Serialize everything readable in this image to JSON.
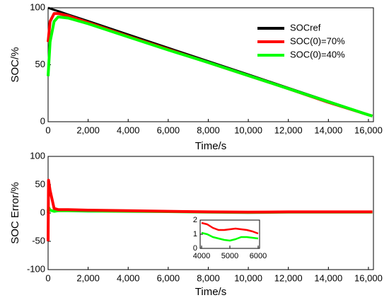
{
  "chart_data": [
    {
      "type": "line",
      "xlabel": "Time/s",
      "ylabel": "SOC/%",
      "x": [
        0,
        100,
        300,
        500,
        1000,
        2000,
        4000,
        6000,
        8000,
        10000,
        12000,
        14000,
        16000,
        16200
      ],
      "series": [
        {
          "name": "SOCref",
          "color": "#000000",
          "values": [
            100,
            99.4,
            98.2,
            97.1,
            94.1,
            88.3,
            76.5,
            64.8,
            53.1,
            41.4,
            29.6,
            17.9,
            6.2,
            5
          ]
        },
        {
          "name": "SOC(0)=70%",
          "color": "#ff0000",
          "values": [
            70,
            88,
            95,
            95,
            93,
            87,
            75,
            63.5,
            52,
            40.5,
            29,
            17,
            6,
            5
          ]
        },
        {
          "name": "SOC(0)=40%",
          "color": "#00ff00",
          "values": [
            40,
            70,
            88,
            92,
            91,
            86,
            74.5,
            63,
            52,
            40.5,
            29,
            17.5,
            6,
            5
          ]
        }
      ],
      "xlim": [
        0,
        16250
      ],
      "ylim": [
        0,
        100
      ],
      "xticks": [
        0,
        {
          "value": 2000,
          "label": "2,000"
        },
        {
          "value": 4000,
          "label": "4,000"
        },
        {
          "value": 6000,
          "label": "6,000"
        },
        {
          "value": 8000,
          "label": "8,000"
        },
        {
          "value": 10000,
          "label": "10,000"
        },
        {
          "value": 12000,
          "label": "12,000"
        },
        {
          "value": 14000,
          "label": "14,000"
        },
        {
          "value": 16000,
          "label": "16,000"
        }
      ],
      "yticks": [
        0,
        50,
        100
      ],
      "legend": "upper right"
    },
    {
      "type": "line",
      "xlabel": "Time/s",
      "ylabel": "SOC Error/%",
      "x": [
        0,
        20,
        100,
        300,
        500,
        1000,
        2000,
        4000,
        6000,
        8000,
        10000,
        12000,
        14000,
        16000,
        16200
      ],
      "series": [
        {
          "color": "#00ff00",
          "values": [
            0,
            10,
            5,
            3,
            4,
            4,
            3.5,
            3,
            2.5,
            1.5,
            1,
            1.5,
            1.5,
            1.5,
            1.5
          ]
        },
        {
          "color": "#ff0000",
          "values": [
            -50,
            58,
            40,
            8,
            6,
            6,
            5,
            4,
            3,
            2,
            1.5,
            2,
            2,
            2,
            2
          ]
        }
      ],
      "xlim": [
        0,
        16250
      ],
      "ylim": [
        -100,
        100
      ],
      "xticks": [
        0,
        {
          "value": 2000,
          "label": "2,000"
        },
        {
          "value": 4000,
          "label": "4,000"
        },
        {
          "value": 6000,
          "label": "6,000"
        },
        {
          "value": 8000,
          "label": "8,000"
        },
        {
          "value": 10000,
          "label": "10,000"
        },
        {
          "value": 12000,
          "label": "12,000"
        },
        {
          "value": 14000,
          "label": "14,000"
        },
        {
          "value": 16000,
          "label": "16,000"
        }
      ],
      "yticks": [
        -100,
        -50,
        0,
        50,
        100
      ]
    },
    {
      "type": "line",
      "x": [
        4000,
        4200,
        4400,
        4600,
        4800,
        5000,
        5200,
        5400,
        5600,
        5800,
        6000
      ],
      "series": [
        {
          "color": "#ff0000",
          "values": [
            1.8,
            1.7,
            1.45,
            1.3,
            1.3,
            1.35,
            1.4,
            1.35,
            1.3,
            1.2,
            1.05
          ]
        },
        {
          "color": "#00ff00",
          "values": [
            1.1,
            1.0,
            0.8,
            0.7,
            0.6,
            0.55,
            0.65,
            0.8,
            0.8,
            0.75,
            0.7
          ]
        }
      ],
      "xlim": [
        3950,
        6050
      ],
      "ylim": [
        0,
        2
      ],
      "xticks": [
        4000,
        5000,
        6000
      ],
      "yticks": [
        0,
        1,
        2
      ]
    }
  ]
}
